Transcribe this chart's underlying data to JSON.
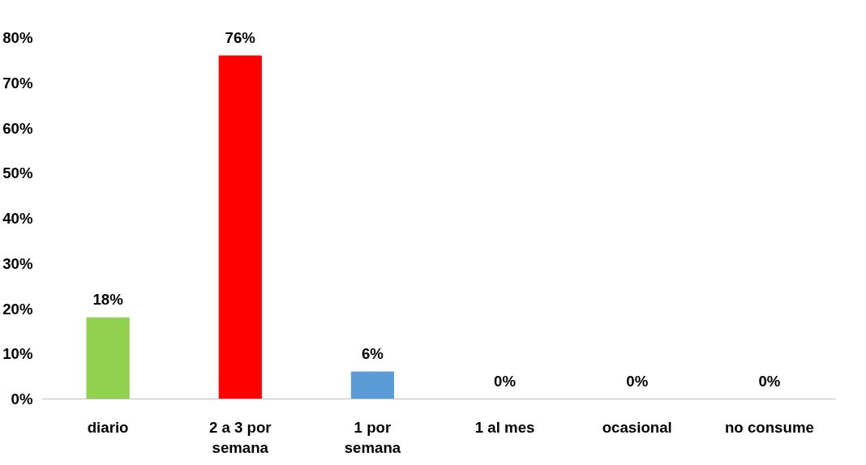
{
  "chart_data": {
    "type": "bar",
    "categories": [
      "diario",
      "2 a 3 por semana",
      "1 por semana",
      "1 al mes",
      "ocasional",
      "no consume"
    ],
    "values": [
      18,
      76,
      6,
      0,
      0,
      0
    ],
    "colors": [
      "#92d050",
      "#ff0000",
      "#5b9bd5",
      "#5b9bd5",
      "#5b9bd5",
      "#5b9bd5"
    ],
    "value_labels": [
      "18%",
      "76%",
      "6%",
      "0%",
      "0%",
      "0%"
    ],
    "ylim": [
      0,
      80
    ],
    "yticks": [
      {
        "value": 0,
        "label": "0%"
      },
      {
        "value": 10,
        "label": "10%"
      },
      {
        "value": 20,
        "label": "20%"
      },
      {
        "value": 30,
        "label": "30%"
      },
      {
        "value": 40,
        "label": "40%"
      },
      {
        "value": 50,
        "label": "50%"
      },
      {
        "value": 60,
        "label": "60%"
      },
      {
        "value": 70,
        "label": "70%"
      },
      {
        "value": 80,
        "label": "80%"
      }
    ],
    "grid": false
  }
}
